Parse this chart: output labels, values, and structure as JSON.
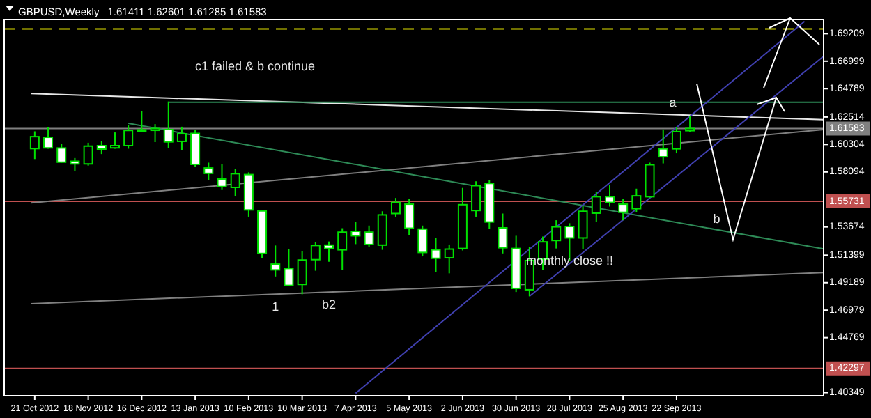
{
  "chart_data": {
    "type": "candlestick",
    "title": "GBPUSD,Weekly",
    "subtitle": "1.61411 1.62601 1.61285 1.61583",
    "color": "#00e000",
    "grid": false,
    "x": [
      "2012-10-21",
      "2012-10-28",
      "2012-11-04",
      "2012-11-11",
      "2012-11-18",
      "2012-11-25",
      "2012-12-02",
      "2012-12-09",
      "2012-12-16",
      "2012-12-23",
      "2012-12-30",
      "2013-01-06",
      "2013-01-13",
      "2013-01-20",
      "2013-01-27",
      "2013-02-03",
      "2013-02-10",
      "2013-02-17",
      "2013-02-24",
      "2013-03-03",
      "2013-03-10",
      "2013-03-17",
      "2013-03-24",
      "2013-03-31",
      "2013-04-07",
      "2013-04-14",
      "2013-04-21",
      "2013-04-28",
      "2013-05-05",
      "2013-05-12",
      "2013-05-19",
      "2013-05-26",
      "2013-06-02",
      "2013-06-09",
      "2013-06-16",
      "2013-06-23",
      "2013-06-30",
      "2013-07-07",
      "2013-07-14",
      "2013-07-21",
      "2013-07-28",
      "2013-08-04",
      "2013-08-11",
      "2013-08-18",
      "2013-08-25",
      "2013-09-01",
      "2013-09-08",
      "2013-09-15",
      "2013-09-22",
      "2013-09-29"
    ],
    "ohlc": [
      [
        1.5997,
        1.6136,
        1.5913,
        1.6093
      ],
      [
        1.6088,
        1.617,
        1.5996,
        1.6003
      ],
      [
        1.6002,
        1.6038,
        1.5884,
        1.5888
      ],
      [
        1.5895,
        1.5921,
        1.5817,
        1.5874
      ],
      [
        1.5874,
        1.6044,
        1.586,
        1.6017
      ],
      [
        1.6021,
        1.6059,
        1.5953,
        1.5993
      ],
      [
        1.6003,
        1.6127,
        1.5996,
        1.6021
      ],
      [
        1.6021,
        1.6188,
        1.5996,
        1.6143
      ],
      [
        1.6141,
        1.6298,
        1.6138,
        1.6148
      ],
      [
        1.6144,
        1.6194,
        1.6049,
        1.6158
      ],
      [
        1.615,
        1.6376,
        1.6002,
        1.6051
      ],
      [
        1.6055,
        1.6173,
        1.5985,
        1.6116
      ],
      [
        1.6119,
        1.6145,
        1.5852,
        1.587
      ],
      [
        1.5841,
        1.5884,
        1.5742,
        1.5798
      ],
      [
        1.5752,
        1.587,
        1.5664,
        1.5692
      ],
      [
        1.5685,
        1.5835,
        1.5617,
        1.5795
      ],
      [
        1.5788,
        1.5806,
        1.545,
        1.5504
      ],
      [
        1.5496,
        1.5504,
        1.5119,
        1.5154
      ],
      [
        1.5068,
        1.5218,
        1.4969,
        1.5022
      ],
      [
        1.5033,
        1.5189,
        1.489,
        1.4897
      ],
      [
        1.4905,
        1.5172,
        1.4826,
        1.5101
      ],
      [
        1.5104,
        1.5243,
        1.5015,
        1.5218
      ],
      [
        1.5221,
        1.525,
        1.5087,
        1.5194
      ],
      [
        1.5183,
        1.5357,
        1.5023,
        1.5325
      ],
      [
        1.5332,
        1.5407,
        1.5229,
        1.5296
      ],
      [
        1.5325,
        1.5378,
        1.5208,
        1.5226
      ],
      [
        1.5221,
        1.5493,
        1.5183,
        1.5464
      ],
      [
        1.5475,
        1.56,
        1.545,
        1.5564
      ],
      [
        1.555,
        1.5592,
        1.53,
        1.5357
      ],
      [
        1.535,
        1.5378,
        1.513,
        1.5162
      ],
      [
        1.5183,
        1.5279,
        1.5004,
        1.5115
      ],
      [
        1.5119,
        1.5226,
        1.4994,
        1.5189
      ],
      [
        1.5194,
        1.5681,
        1.5178,
        1.5546
      ],
      [
        1.5499,
        1.5734,
        1.545,
        1.5699
      ],
      [
        1.5717,
        1.5742,
        1.535,
        1.5407
      ],
      [
        1.536,
        1.5475,
        1.5154,
        1.52
      ],
      [
        1.5194,
        1.5296,
        1.4844,
        1.4873
      ],
      [
        1.4862,
        1.5208,
        1.4809,
        1.5097
      ],
      [
        1.5108,
        1.529,
        1.5023,
        1.5247
      ],
      [
        1.5258,
        1.5421,
        1.5194,
        1.5368
      ],
      [
        1.5371,
        1.5397,
        1.5093,
        1.5279
      ],
      [
        1.5279,
        1.5539,
        1.5189,
        1.5493
      ],
      [
        1.5478,
        1.5646,
        1.5407,
        1.561
      ],
      [
        1.561,
        1.5707,
        1.5531,
        1.5564
      ],
      [
        1.555,
        1.5592,
        1.5421,
        1.5485
      ],
      [
        1.5514,
        1.5675,
        1.5485,
        1.5617
      ],
      [
        1.561,
        1.5884,
        1.5603,
        1.5867
      ],
      [
        1.5995,
        1.6151,
        1.5878,
        1.5931
      ],
      [
        1.5995,
        1.617,
        1.5959,
        1.6134
      ],
      [
        1.61411,
        1.62601,
        1.61285,
        1.61583
      ]
    ],
    "series": [
      {
        "type": "line",
        "color": "#e8e8e8",
        "x": [
          "2012-10-19",
          "2013-12-08"
        ],
        "values": [
          1.644,
          1.623
        ]
      },
      {
        "type": "line",
        "color": "#808080",
        "x": [
          "2012-10-19",
          "2013-12-08"
        ],
        "values": [
          1.556,
          1.615
        ]
      },
      {
        "type": "line",
        "color": "#2e8b57",
        "x": [
          "2012-12-09",
          "2013-12-08"
        ],
        "values": [
          1.62,
          1.519
        ]
      },
      {
        "type": "line",
        "color": "#808080",
        "x": [
          "2012-10-19",
          "2013-12-08"
        ],
        "values": [
          1.475,
          1.5
        ]
      },
      {
        "type": "line",
        "color": "#2e8b57",
        "x": [
          "2012-12-30",
          "2013-12-08"
        ],
        "values": [
          1.637,
          1.637
        ]
      },
      {
        "type": "line",
        "color": "#4040b0",
        "x": [
          "2013-04-07",
          "2013-11-28"
        ],
        "values": [
          1.403,
          1.702
        ]
      },
      {
        "type": "line",
        "color": "#4040b0",
        "x": [
          "2013-07-07",
          "2013-12-08"
        ],
        "values": [
          1.481,
          1.674
        ]
      }
    ],
    "ref_lines": [
      {
        "axis": "y",
        "value": 1.696,
        "color": "#e0e000",
        "line_style": "dashed"
      },
      {
        "axis": "y",
        "value": 1.61583,
        "label": "1.61583",
        "color": "#808080"
      },
      {
        "axis": "y",
        "value": 1.55731,
        "label": "1.55731",
        "color": "#c05050"
      },
      {
        "axis": "y",
        "value": 1.42297,
        "label": "1.42297",
        "color": "#c05050"
      }
    ],
    "annotations": [
      "c1 failed & b continue",
      {
        "text": "a",
        "x": "2013-09-20",
        "y": 1.6319
      },
      {
        "text": "b",
        "x": "2013-10-13",
        "y": 1.5379
      },
      {
        "text": "1",
        "x": "2013-02-24",
        "y": 1.483
      },
      {
        "text": "b2",
        "x": "2013-03-24",
        "y": 1.485
      },
      {
        "text": "monthly close !!",
        "x": "2013-07-28",
        "y": 1.5047
      }
    ],
    "xlim": [
      "2012-10-05",
      "2013-12-08"
    ],
    "xticks": [
      {
        "value": "2012-10-21",
        "label": "21 Oct 2012"
      },
      {
        "value": "2012-11-18",
        "label": "18 Nov 2012"
      },
      {
        "value": "2012-12-16",
        "label": "16 Dec 2012"
      },
      {
        "value": "2013-01-13",
        "label": "13 Jan 2013"
      },
      {
        "value": "2013-02-10",
        "label": "10 Feb 2013"
      },
      {
        "value": "2013-03-10",
        "label": "10 Mar 2013"
      },
      {
        "value": "2013-04-07",
        "label": "7 Apr 2013"
      },
      {
        "value": "2013-05-05",
        "label": "5 May 2013"
      },
      {
        "value": "2013-06-02",
        "label": "2 Jun 2013"
      },
      {
        "value": "2013-06-30",
        "label": "30 Jun 2013"
      },
      {
        "value": "2013-07-28",
        "label": "28 Jul 2013"
      },
      {
        "value": "2013-08-25",
        "label": "25 Aug 2013"
      },
      {
        "value": "2013-09-22",
        "label": "22 Sep 2013"
      }
    ],
    "ylim": [
      1.401,
      1.7035
    ],
    "yticks": [
      1.69209,
      1.66999,
      1.64789,
      1.62514,
      1.60304,
      1.58094,
      1.53674,
      1.51399,
      1.49189,
      1.46979,
      1.44769,
      1.40349
    ]
  }
}
